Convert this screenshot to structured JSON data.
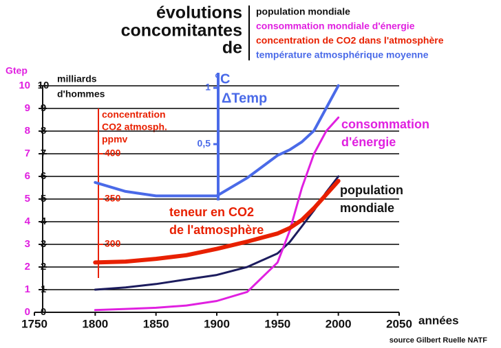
{
  "chart_data": {
    "type": "line",
    "title": [
      "évolutions",
      "concomitantes",
      "de"
    ],
    "x_label": "années",
    "source": "source  Gilbert Ruelle NATF",
    "xlim": [
      1750,
      2050
    ],
    "xticks": [
      1750,
      1800,
      1850,
      1900,
      1950,
      2000,
      2050
    ],
    "ylim": [
      0,
      10
    ],
    "yticks": [
      0,
      1,
      2,
      3,
      4,
      5,
      6,
      7,
      8,
      9,
      10
    ],
    "y_label": "Gtep",
    "y2lim": [
      0,
      10
    ],
    "y2ticks": [
      0,
      1,
      2,
      3,
      4,
      5,
      6,
      7,
      8,
      9,
      10
    ],
    "y2_label": [
      "milliards",
      "d'hommes"
    ],
    "co2lim": [
      225,
      475
    ],
    "co2ticks": [
      300,
      350,
      400
    ],
    "co2_label": [
      "concentration",
      "CO2 atmosph.",
      "ppmv"
    ],
    "templim": [
      0,
      1.1
    ],
    "tempticks": [
      {
        "value": 0.5,
        "label": "0,5"
      },
      1
    ],
    "temp_label": "°C",
    "temp_annotation": "ΔTemp",
    "grid": true,
    "x": [
      1800,
      1825,
      1850,
      1875,
      1900,
      1925,
      1950,
      1960,
      1970,
      1980,
      1990,
      2000
    ],
    "series": [
      {
        "name": "population mondiale",
        "color": "#1c1c5e",
        "axis": "y2",
        "annotation": [
          "population",
          "mondiale"
        ],
        "values": [
          1,
          1.1,
          1.25,
          1.45,
          1.65,
          2,
          2.6,
          3.1,
          3.8,
          4.5,
          5.3,
          6
        ]
      },
      {
        "name": "consommation mondiale d'énergie",
        "color": "#e020e0",
        "axis": "y",
        "annotation": [
          "consommation",
          "d'énergie"
        ],
        "values": [
          0.1,
          0.15,
          0.2,
          0.3,
          0.5,
          0.9,
          2.2,
          3.6,
          5.5,
          7,
          8,
          8.6
        ]
      },
      {
        "name": "concentration de CO2 dans l'atmosphère",
        "color": "#e82000",
        "axis": "co2",
        "annotation": [
          "teneur en CO2",
          "de l'atmosphère"
        ],
        "values": [
          280,
          281,
          284,
          288,
          295,
          303,
          312,
          318,
          327,
          340,
          355,
          370
        ]
      },
      {
        "name": "température atmosphérique moyenne",
        "color": "#4a6ae8",
        "axis": "temp",
        "values": [
          0.16,
          0.08,
          0.04,
          0.04,
          0.04,
          0.2,
          0.4,
          0.45,
          0.52,
          0.62,
          0.82,
          1.02
        ]
      }
    ]
  }
}
